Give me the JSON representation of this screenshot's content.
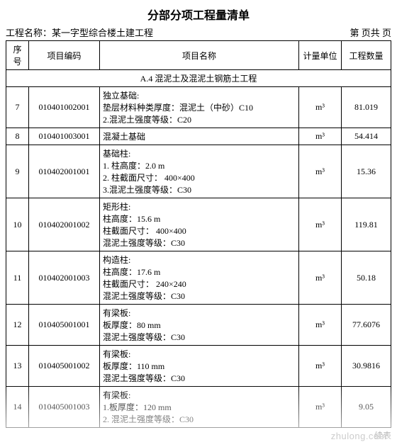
{
  "title": "分部分项工程量清单",
  "project_label": "工程名称：",
  "project_name": "某一字型综合楼土建工程",
  "page_text": "第 页共 页",
  "columns": {
    "seq": "序号",
    "code": "项目编码",
    "name": "项目名称",
    "unit": "计量单位",
    "qty": "工程数量"
  },
  "section": "A.4 混泥土及混泥土钢筋土工程",
  "unit_symbol": "m³",
  "rows": [
    {
      "seq": "7",
      "code": "010401002001",
      "name_main": "独立基础:",
      "name_lines": [
        "垫层材料种类厚度：混泥土（中砂）C10",
        "2.混泥土强度等级：C20"
      ],
      "qty": "81.019"
    },
    {
      "seq": "8",
      "code": "010401003001",
      "name_main": "混凝土基础",
      "name_lines": [],
      "qty": "54.414"
    },
    {
      "seq": "9",
      "code": "010402001001",
      "name_main": "基础柱:",
      "name_lines": [
        "1. 柱高度：2.0 m",
        "2. 柱截面尺寸： 400×400",
        "3.混泥土强度等级：C30"
      ],
      "qty": "15.36"
    },
    {
      "seq": "10",
      "code": "010402001002",
      "name_main": "矩形柱:",
      "name_lines": [
        "柱高度：15.6 m",
        "柱截面尺寸： 400×400",
        "混泥土强度等级：C30"
      ],
      "qty": "119.81"
    },
    {
      "seq": "11",
      "code": "010402001003",
      "name_main": "构造柱:",
      "name_lines": [
        "柱高度：17.6 m",
        "柱截面尺寸： 240×240",
        "混泥土强度等级：C30"
      ],
      "qty": "50.18"
    },
    {
      "seq": "12",
      "code": "010405001001",
      "name_main": "有梁板:",
      "name_lines": [
        "板厚度：80 mm",
        "混泥土强度等级：C30"
      ],
      "qty": "77.6076"
    },
    {
      "seq": "13",
      "code": "010405001002",
      "name_main": "有梁板:",
      "name_lines": [
        "板厚度：110 mm",
        "混泥土强度等级：C30"
      ],
      "qty": "30.9816"
    },
    {
      "seq": "14",
      "code": "010405001003",
      "name_main": "有梁板:",
      "name_lines": [
        "1.板厚度：120 mm",
        "2. 混泥土强度等级：C30"
      ],
      "qty": "9.05"
    }
  ],
  "footer": "续表",
  "watermark": "zhulong.com"
}
